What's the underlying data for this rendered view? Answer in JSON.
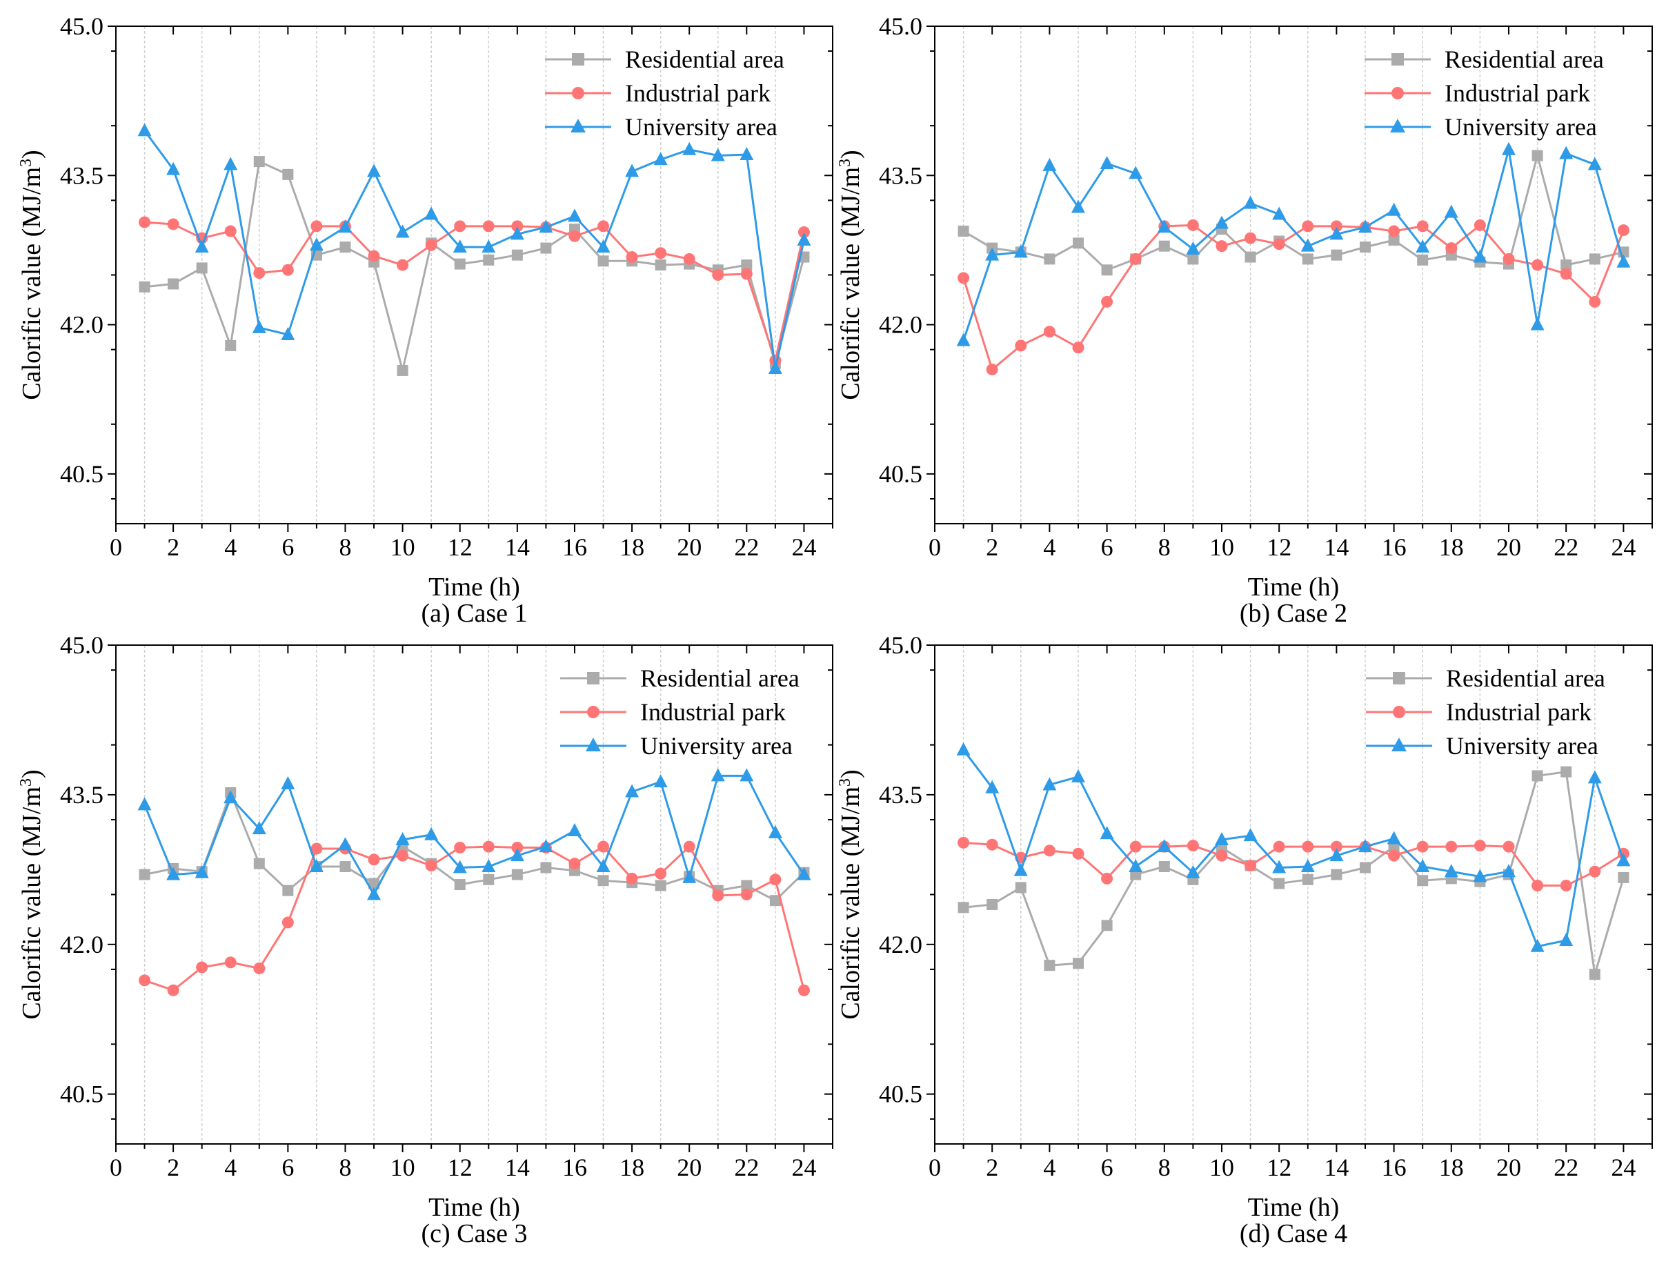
{
  "colors": {
    "residential": "#ababab",
    "industrial": "#ff7575",
    "university": "#2e9be8"
  },
  "chart_data": [
    {
      "type": "line",
      "title": "(a) Case 1",
      "xlabel": "Time (h)",
      "ylabel": "Calorific value (MJ/m3)",
      "ylabel_main": "Calorific value (MJ/m",
      "ylabel_sup": "3",
      "ylabel_end": ")",
      "xlim": [
        0,
        25
      ],
      "ylim": [
        40,
        45
      ],
      "xticks": [
        0,
        2,
        4,
        6,
        8,
        10,
        12,
        14,
        16,
        18,
        20,
        22,
        24
      ],
      "yticks": [
        "40.5",
        "42.0",
        "43.5",
        "45.0"
      ],
      "legend": "top-right",
      "grid": "vertical dashed",
      "x": [
        1,
        2,
        3,
        4,
        5,
        6,
        7,
        8,
        9,
        10,
        11,
        12,
        13,
        14,
        15,
        16,
        17,
        18,
        19,
        20,
        21,
        22,
        23,
        24
      ],
      "series": [
        {
          "name": "Residential area",
          "marker": "square",
          "values": [
            42.38,
            42.41,
            42.57,
            41.79,
            43.64,
            43.51,
            42.7,
            42.78,
            42.63,
            41.54,
            42.82,
            42.61,
            42.65,
            42.7,
            42.77,
            42.96,
            42.64,
            42.64,
            42.6,
            42.61,
            42.55,
            42.6,
            41.61,
            42.68
          ]
        },
        {
          "name": "Industrial park",
          "marker": "circle",
          "values": [
            43.03,
            43.01,
            42.87,
            42.94,
            42.52,
            42.55,
            42.99,
            42.99,
            42.69,
            42.6,
            42.8,
            42.99,
            42.99,
            42.99,
            42.98,
            42.89,
            42.99,
            42.68,
            42.72,
            42.66,
            42.5,
            42.51,
            41.64,
            42.93
          ]
        },
        {
          "name": "University area",
          "marker": "triangle",
          "values": [
            43.95,
            43.56,
            42.78,
            43.61,
            41.97,
            41.9,
            42.8,
            42.98,
            43.54,
            42.93,
            43.11,
            42.78,
            42.78,
            42.91,
            42.98,
            43.09,
            42.78,
            43.54,
            43.66,
            43.76,
            43.7,
            43.71,
            41.56,
            42.85
          ]
        }
      ]
    },
    {
      "type": "line",
      "title": "(b) Case 2",
      "xlabel": "Time (h)",
      "ylabel": "Calorific value (MJ/m3)",
      "ylabel_main": "Calorific value (MJ/m",
      "ylabel_sup": "3",
      "ylabel_end": ")",
      "xlim": [
        0,
        25
      ],
      "ylim": [
        40,
        45
      ],
      "xticks": [
        0,
        2,
        4,
        6,
        8,
        10,
        12,
        14,
        16,
        18,
        20,
        22,
        24
      ],
      "yticks": [
        "40.5",
        "42.0",
        "43.5",
        "45.0"
      ],
      "legend": "top-right",
      "grid": "vertical dashed",
      "x": [
        1,
        2,
        3,
        4,
        5,
        6,
        7,
        8,
        9,
        10,
        11,
        12,
        13,
        14,
        15,
        16,
        17,
        18,
        19,
        20,
        21,
        22,
        23,
        24
      ],
      "series": [
        {
          "name": "Residential area",
          "marker": "square",
          "values": [
            42.94,
            42.77,
            42.73,
            42.66,
            42.82,
            42.55,
            42.66,
            42.79,
            42.66,
            42.96,
            42.68,
            42.84,
            42.66,
            42.7,
            42.78,
            42.85,
            42.65,
            42.7,
            42.63,
            42.61,
            43.7,
            42.6,
            42.66,
            42.73
          ]
        },
        {
          "name": "Industrial park",
          "marker": "circle",
          "values": [
            42.47,
            41.55,
            41.79,
            41.93,
            41.77,
            42.23,
            42.66,
            42.99,
            43.0,
            42.79,
            42.87,
            42.81,
            42.99,
            42.99,
            42.98,
            42.94,
            42.99,
            42.77,
            43.0,
            42.66,
            42.6,
            42.51,
            42.23,
            42.95
          ]
        },
        {
          "name": "University area",
          "marker": "triangle",
          "values": [
            41.84,
            42.7,
            42.73,
            43.6,
            43.18,
            43.62,
            43.52,
            42.98,
            42.76,
            43.02,
            43.22,
            43.11,
            42.79,
            42.91,
            42.98,
            43.15,
            42.78,
            43.13,
            42.68,
            43.76,
            42.0,
            43.72,
            43.61,
            42.63
          ]
        }
      ]
    },
    {
      "type": "line",
      "title": "(c) Case 3",
      "xlabel": "Time (h)",
      "ylabel": "Calorific value (MJ/m3)",
      "ylabel_main": "Calorific value (MJ/m",
      "ylabel_sup": "3",
      "ylabel_end": ")",
      "xlim": [
        0,
        25
      ],
      "ylim": [
        40,
        45
      ],
      "xticks": [
        0,
        2,
        4,
        6,
        8,
        10,
        12,
        14,
        16,
        18,
        20,
        22,
        24
      ],
      "yticks": [
        "40.5",
        "42.0",
        "43.5",
        "45.0"
      ],
      "legend": "top-right",
      "grid": "vertical dashed",
      "x": [
        1,
        2,
        3,
        4,
        5,
        6,
        7,
        8,
        9,
        10,
        11,
        12,
        13,
        14,
        15,
        16,
        17,
        18,
        19,
        20,
        21,
        22,
        23,
        24
      ],
      "series": [
        {
          "name": "Residential area",
          "marker": "square",
          "values": [
            42.7,
            42.76,
            42.73,
            43.52,
            42.81,
            42.54,
            42.78,
            42.78,
            42.61,
            42.98,
            42.81,
            42.6,
            42.65,
            42.7,
            42.77,
            42.74,
            42.64,
            42.62,
            42.59,
            42.68,
            42.54,
            42.59,
            42.44,
            42.72
          ]
        },
        {
          "name": "Industrial park",
          "marker": "circle",
          "values": [
            41.64,
            41.54,
            41.77,
            41.82,
            41.76,
            42.22,
            42.96,
            42.96,
            42.85,
            42.89,
            42.79,
            42.97,
            42.98,
            42.97,
            42.97,
            42.81,
            42.98,
            42.66,
            42.71,
            42.98,
            42.49,
            42.5,
            42.65,
            41.54
          ]
        },
        {
          "name": "University area",
          "marker": "triangle",
          "values": [
            43.4,
            42.7,
            42.72,
            43.47,
            43.16,
            43.61,
            42.78,
            43.0,
            42.5,
            43.05,
            43.1,
            42.77,
            42.78,
            42.89,
            42.98,
            43.14,
            42.78,
            43.53,
            43.63,
            42.67,
            43.69,
            43.69,
            43.12,
            42.7
          ]
        }
      ]
    },
    {
      "type": "line",
      "title": "(d) Case 4",
      "xlabel": "Time (h)",
      "ylabel": "Calorific value (MJ/m3)",
      "ylabel_main": "Calorific value (MJ/m",
      "ylabel_sup": "3",
      "ylabel_end": ")",
      "xlim": [
        0,
        25
      ],
      "ylim": [
        40,
        45
      ],
      "xticks": [
        0,
        2,
        4,
        6,
        8,
        10,
        12,
        14,
        16,
        18,
        20,
        22,
        24
      ],
      "yticks": [
        "40.5",
        "42.0",
        "43.5",
        "45.0"
      ],
      "legend": "top-right",
      "grid": "vertical dashed",
      "x": [
        1,
        2,
        3,
        4,
        5,
        6,
        7,
        8,
        9,
        10,
        11,
        12,
        13,
        14,
        15,
        16,
        17,
        18,
        19,
        20,
        21,
        22,
        23,
        24
      ],
      "series": [
        {
          "name": "Residential area",
          "marker": "square",
          "values": [
            42.37,
            42.4,
            42.57,
            41.79,
            41.81,
            42.19,
            42.7,
            42.78,
            42.65,
            42.97,
            42.79,
            42.61,
            42.65,
            42.7,
            42.77,
            42.98,
            42.64,
            42.66,
            42.63,
            42.7,
            43.69,
            43.73,
            41.7,
            42.67
          ]
        },
        {
          "name": "Industrial park",
          "marker": "circle",
          "values": [
            43.02,
            43.0,
            42.87,
            42.94,
            42.91,
            42.66,
            42.98,
            42.98,
            42.99,
            42.89,
            42.79,
            42.98,
            42.98,
            42.98,
            42.98,
            42.89,
            42.98,
            42.98,
            42.99,
            42.98,
            42.59,
            42.59,
            42.73,
            42.91
          ]
        },
        {
          "name": "University area",
          "marker": "triangle",
          "values": [
            43.95,
            43.57,
            42.74,
            43.6,
            43.68,
            43.11,
            42.78,
            42.98,
            42.72,
            43.05,
            43.09,
            42.77,
            42.78,
            42.89,
            42.98,
            43.06,
            42.78,
            42.73,
            42.68,
            42.73,
            41.98,
            42.04,
            43.67,
            42.84
          ]
        }
      ]
    }
  ]
}
